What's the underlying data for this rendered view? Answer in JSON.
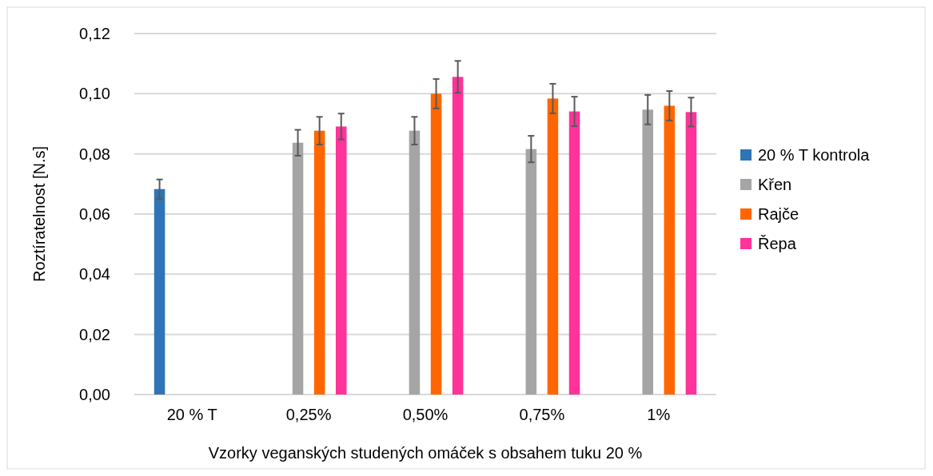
{
  "chart_data": {
    "type": "bar",
    "xlabel": "Vzorky veganských studených omáček s obsahem tuku 20  %",
    "ylabel": "Roztíratelnost [N.s]",
    "categories": [
      "20 % T",
      "0,25%",
      "0,50%",
      "0,75%",
      "1%"
    ],
    "series": [
      {
        "name": "20 % T kontrola",
        "color": "#2e75b6",
        "values": [
          0.0683,
          null,
          null,
          null,
          null
        ],
        "errors": [
          0.0032,
          null,
          null,
          null,
          null
        ]
      },
      {
        "name": "Křen",
        "color": "#a5a5a5",
        "values": [
          null,
          0.0837,
          0.0877,
          0.0816,
          0.0947
        ],
        "errors": [
          null,
          0.0043,
          0.0046,
          0.0044,
          0.0049
        ]
      },
      {
        "name": "Rajče",
        "color": "#ff6600",
        "values": [
          null,
          0.0877,
          0.1,
          0.0984,
          0.096
        ],
        "errors": [
          null,
          0.0046,
          0.0049,
          0.0049,
          0.0049
        ]
      },
      {
        "name": "Řepa",
        "color": "#ff3399",
        "values": [
          null,
          0.0891,
          0.1056,
          0.0941,
          0.0939
        ],
        "errors": [
          null,
          0.0043,
          0.0053,
          0.0049,
          0.0048
        ]
      }
    ],
    "ylim": [
      0,
      0.12
    ],
    "yticks": [
      {
        "value": 0,
        "label": "0,00"
      },
      {
        "value": 0.02,
        "label": "0,02"
      },
      {
        "value": 0.04,
        "label": "0,04"
      },
      {
        "value": 0.06,
        "label": "0,06"
      },
      {
        "value": 0.08,
        "label": "0,08"
      },
      {
        "value": 0.1,
        "label": "0,10"
      },
      {
        "value": 0.12,
        "label": "0,12"
      }
    ],
    "grid": "y",
    "legend": "right"
  }
}
